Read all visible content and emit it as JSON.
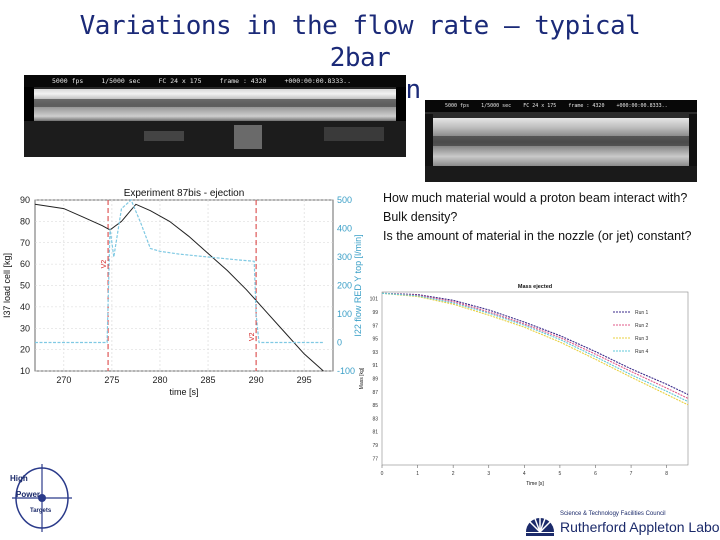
{
  "title_line1": "Variations in the flow rate – typical 2bar",
  "title_line2": "ejection",
  "photo1_overlay": [
    "5000 fps",
    "1/5000 sec",
    "FC 24 x 175",
    "frame : 4320",
    "+000:00:00.8333.."
  ],
  "photo2_overlay": [
    "5000 fps",
    "1/5000 sec",
    "FC 24 x 175",
    "frame : 4320",
    "+000:00:00.8333.."
  ],
  "bullets": [
    "How much material would a proton beam interact with?",
    "Bulk density?",
    "Is the amount of material in the nozzle (or jet) constant?"
  ],
  "chart_data": [
    {
      "type": "line",
      "title": "Experiment 87bis - ejection",
      "xlabel": "time [s]",
      "ylabel_left": "I37 load cell [kg]",
      "ylabel_right": "I22 flow RED Y top [l/min]",
      "xlim": [
        267,
        298
      ],
      "ylim_left": [
        10,
        90
      ],
      "ylim_right": [
        -100,
        500
      ],
      "x_ticks": [
        "270",
        "275",
        "280",
        "285",
        "290",
        "295"
      ],
      "y_left_ticks": [
        "10",
        "20",
        "30",
        "40",
        "50",
        "60",
        "70",
        "80",
        "90"
      ],
      "y_right_ticks": [
        "-100",
        "0",
        "100",
        "200",
        "300",
        "400",
        "500"
      ],
      "annotations": [
        {
          "text": "V2",
          "x": 274.6,
          "color": "#d32020"
        },
        {
          "text": "V2",
          "x": 290,
          "color": "#d32020"
        }
      ],
      "grid": true,
      "series": [
        {
          "axis": "left",
          "color": "#222222",
          "x": [
            267,
            270,
            272,
            274,
            274.8,
            276,
            277.5,
            279,
            281,
            283,
            285,
            287,
            289,
            291,
            293,
            295,
            297
          ],
          "values": [
            88,
            86,
            82,
            78,
            76,
            80,
            88,
            85,
            80,
            73,
            65,
            57,
            48,
            38,
            28,
            18,
            10
          ]
        },
        {
          "axis": "right",
          "color": "#7fc9e3",
          "x": [
            267,
            274.5,
            274.8,
            275.2,
            276,
            277,
            278,
            279,
            280,
            282,
            285,
            288,
            289.8,
            290,
            290.3,
            293,
            297
          ],
          "values": [
            0,
            0,
            400,
            300,
            470,
            500,
            420,
            330,
            320,
            310,
            300,
            290,
            285,
            100,
            0,
            0,
            0
          ]
        }
      ]
    },
    {
      "type": "line",
      "title": "Mass ejected",
      "xlabel": "Time [s]",
      "ylabel": "Mass [kg]",
      "xlim": [
        0,
        8.6
      ],
      "ylim": [
        73,
        100
      ],
      "x_ticks": [
        "0",
        "1",
        "2",
        "3",
        "4",
        "5",
        "6",
        "7",
        "8"
      ],
      "y_ticks": [
        "77",
        "79",
        "81",
        "83",
        "85",
        "87",
        "89",
        "91",
        "93",
        "95",
        "97",
        "99",
        "101"
      ],
      "legend_position": "right",
      "series": [
        {
          "name": "Run 1",
          "color": "#3a2a8a",
          "x": [
            0,
            1,
            2,
            3,
            4,
            5,
            6,
            7,
            8,
            8.6
          ],
          "values": [
            99.8,
            99.6,
            98.7,
            97.2,
            95.3,
            93.2,
            90.7,
            88.0,
            85.6,
            84.0
          ]
        },
        {
          "name": "Run 2",
          "color": "#e05a8a",
          "x": [
            0,
            1,
            2,
            3,
            4,
            5,
            6,
            7,
            8,
            8.6
          ],
          "values": [
            99.8,
            99.5,
            98.5,
            96.9,
            95.0,
            92.9,
            90.3,
            87.6,
            85.0,
            83.4
          ]
        },
        {
          "name": "Run 3",
          "color": "#e8d040",
          "x": [
            0,
            1,
            2,
            3,
            4,
            5,
            6,
            7,
            8,
            8.6
          ],
          "values": [
            99.8,
            99.3,
            98.1,
            96.4,
            94.5,
            92.2,
            89.5,
            86.7,
            84.0,
            82.4
          ]
        },
        {
          "name": "Run 4",
          "color": "#60c8d8",
          "x": [
            0,
            1,
            2,
            3,
            4,
            5,
            6,
            7,
            8,
            8.6
          ],
          "values": [
            99.8,
            99.4,
            98.3,
            96.7,
            94.8,
            92.6,
            89.9,
            87.1,
            84.5,
            82.9
          ]
        }
      ]
    }
  ],
  "logo_left_text": [
    "High",
    "Power",
    "Targets"
  ],
  "logo_ral_small": "Science & Technology Facilities Council",
  "logo_ral_big": "Rutherford Appleton Laboratory"
}
